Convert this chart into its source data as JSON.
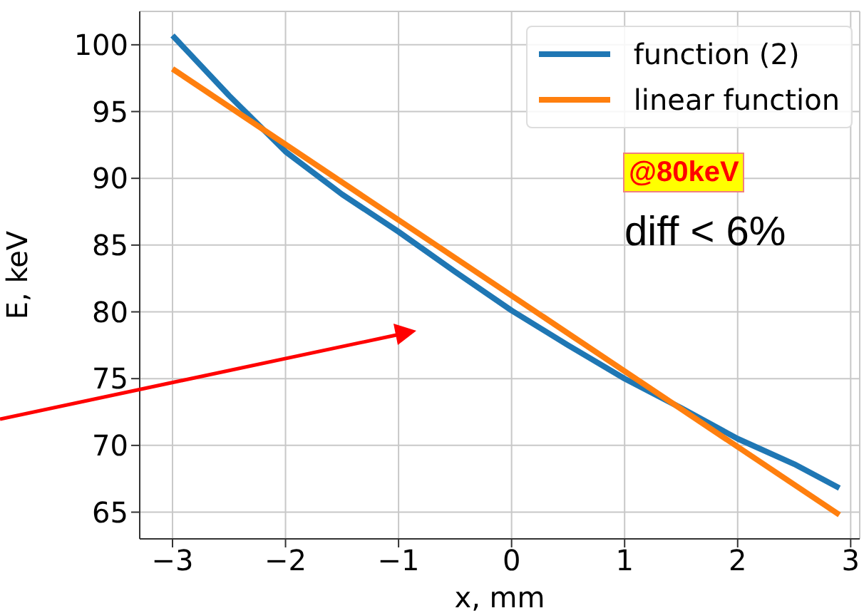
{
  "chart_data": {
    "type": "line",
    "xlabel": "x, mm",
    "ylabel": "E, keV",
    "xlim": [
      -3.29,
      3.08
    ],
    "ylim": [
      63.0,
      102.5
    ],
    "xticks": [
      -3,
      -2,
      -1,
      0,
      1,
      2,
      3
    ],
    "yticks": [
      65,
      70,
      75,
      80,
      85,
      90,
      95,
      100
    ],
    "grid": true,
    "legend": "top right",
    "line_style": "solid",
    "marker": "none",
    "annotations": [
      "@80keV",
      "diff < 6%"
    ],
    "series": [
      {
        "name": "function (2)",
        "color": "#1f77b4",
        "x": [
          -3,
          -2.5,
          -2,
          -1.5,
          -1,
          -0.5,
          0,
          0.5,
          1,
          1.5,
          2,
          2.5,
          2.9
        ],
        "values": [
          100.7,
          96.2,
          92.0,
          88.8,
          86.0,
          83.0,
          80.1,
          77.5,
          75.0,
          72.8,
          70.5,
          68.6,
          66.8
        ]
      },
      {
        "name": "linear function",
        "color": "#ff7f0e",
        "x": [
          -3,
          2.9
        ],
        "values": [
          98.2,
          64.8
        ]
      }
    ]
  }
}
